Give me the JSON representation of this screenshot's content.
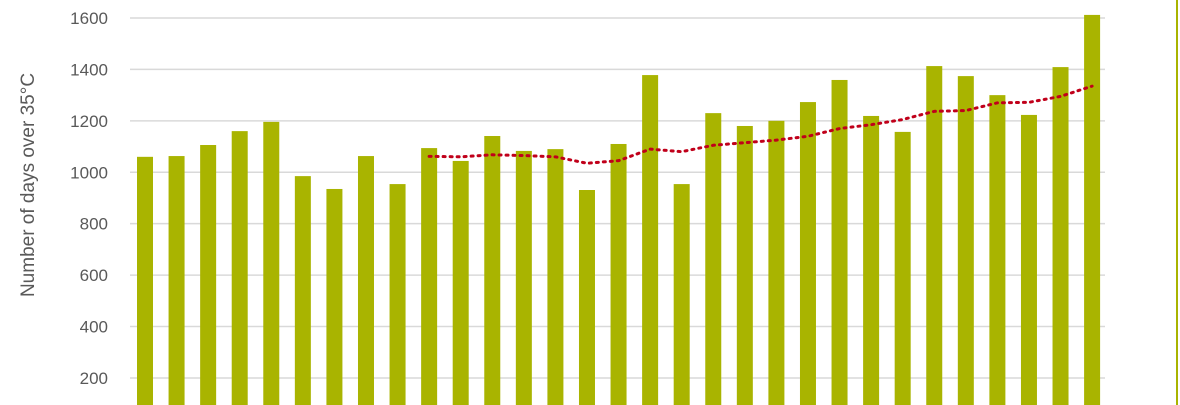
{
  "chart_data": {
    "type": "bar",
    "title": "",
    "xlabel": "",
    "ylabel": "Number of days over 35°C",
    "ylim": [
      0,
      1600
    ],
    "yticks": [
      200,
      400,
      600,
      800,
      1000,
      1200,
      1400,
      1600
    ],
    "grid": true,
    "colors": {
      "bars": "#A9B400",
      "trend": "#C0001A",
      "grid": "#D9D9D9",
      "frame": "#A9B400"
    },
    "series": [
      {
        "type": "bar",
        "values": [
          1060,
          1063,
          1106,
          1160,
          1196,
          985,
          935,
          1063,
          954,
          1094,
          1044,
          1141,
          1083,
          1090,
          931,
          1110,
          1378,
          954,
          1230,
          1180,
          1200,
          1273,
          1359,
          1219,
          1157,
          1413,
          1374,
          1300,
          1223,
          1409,
          1612
        ]
      },
      {
        "type": "line",
        "style": "dotted",
        "start_index": 9,
        "values": [
          1062,
          1060,
          1068,
          1065,
          1060,
          1035,
          1045,
          1090,
          1080,
          1105,
          1115,
          1125,
          1140,
          1170,
          1185,
          1205,
          1237,
          1240,
          1270,
          1272,
          1295,
          1335
        ]
      }
    ]
  }
}
